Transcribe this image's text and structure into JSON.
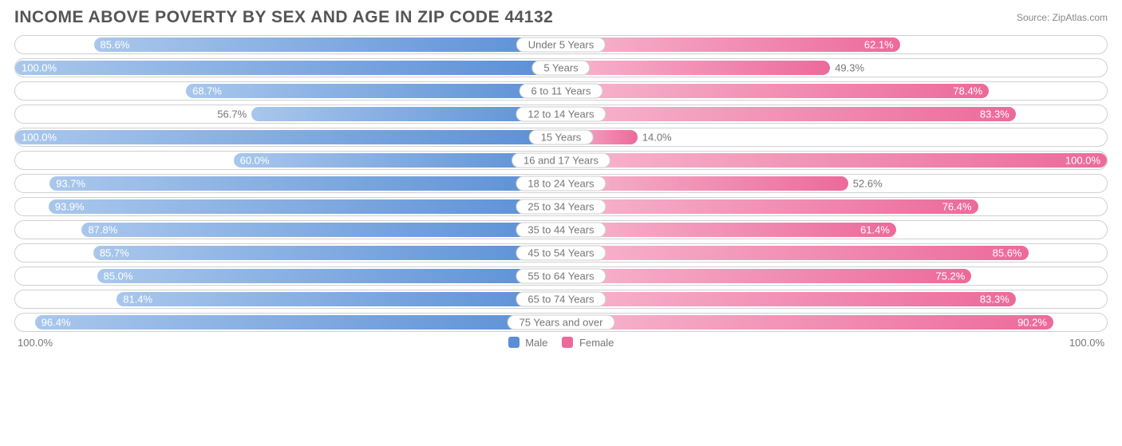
{
  "chart": {
    "title": "INCOME ABOVE POVERTY BY SEX AND AGE IN ZIP CODE 44132",
    "source": "Source: ZipAtlas.com",
    "male_color_start": "#a9c7ec",
    "male_color_end": "#5a8fd6",
    "female_color_start": "#f7b6ce",
    "female_color_end": "#ec6a9a",
    "label_outside_threshold": 58,
    "axis_left": "100.0%",
    "axis_right": "100.0%",
    "legend": {
      "male": "Male",
      "female": "Female"
    },
    "rows": [
      {
        "category": "Under 5 Years",
        "male": 85.6,
        "female": 62.1
      },
      {
        "category": "5 Years",
        "male": 100.0,
        "female": 49.3
      },
      {
        "category": "6 to 11 Years",
        "male": 68.7,
        "female": 78.4
      },
      {
        "category": "12 to 14 Years",
        "male": 56.7,
        "female": 83.3
      },
      {
        "category": "15 Years",
        "male": 100.0,
        "female": 14.0
      },
      {
        "category": "16 and 17 Years",
        "male": 60.0,
        "female": 100.0
      },
      {
        "category": "18 to 24 Years",
        "male": 93.7,
        "female": 52.6
      },
      {
        "category": "25 to 34 Years",
        "male": 93.9,
        "female": 76.4
      },
      {
        "category": "35 to 44 Years",
        "male": 87.8,
        "female": 61.4
      },
      {
        "category": "45 to 54 Years",
        "male": 85.7,
        "female": 85.6
      },
      {
        "category": "55 to 64 Years",
        "male": 85.0,
        "female": 75.2
      },
      {
        "category": "65 to 74 Years",
        "male": 81.4,
        "female": 83.3
      },
      {
        "category": "75 Years and over",
        "male": 96.4,
        "female": 90.2
      }
    ]
  }
}
